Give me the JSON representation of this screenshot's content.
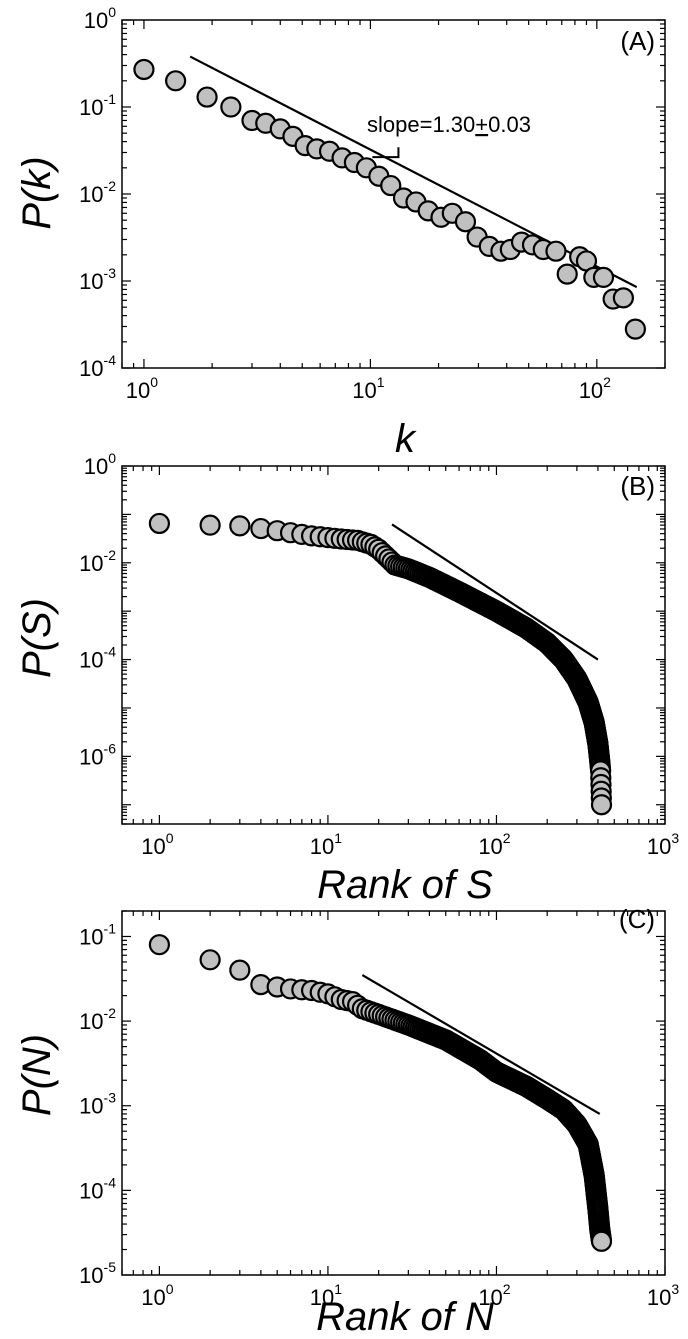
{
  "chart_data": [
    {
      "type": "scatter",
      "panel_tag": "(A)",
      "xlabel": "k",
      "ylabel": "P(k)",
      "xscale": "log",
      "yscale": "log",
      "xlim": [
        0.8,
        200
      ],
      "ylim": [
        0.0001,
        1
      ],
      "x_ticks": [
        {
          "base": "10",
          "exp": "0"
        },
        {
          "base": "10",
          "exp": "1"
        },
        {
          "base": "10",
          "exp": "2"
        }
      ],
      "y_ticks": [
        {
          "base": "10",
          "exp": "-4"
        },
        {
          "base": "10",
          "exp": "-3"
        },
        {
          "base": "10",
          "exp": "-2"
        },
        {
          "base": "10",
          "exp": "-1"
        },
        {
          "base": "10",
          "exp": "0"
        }
      ],
      "annotation": {
        "prefix": "slope=1.30",
        "pm": "+",
        "suffix": "0.03"
      },
      "marker_color": "#c0c0c0",
      "fit_line": {
        "x": [
          1.6,
          150
        ],
        "y": [
          0.38,
          0.00085
        ]
      },
      "slope_marker": {
        "corner": [
          10.2,
          0.0265
        ],
        "x_end": 13.3,
        "y_top": 0.0345
      },
      "x": [
        1.0,
        1.38,
        1.9,
        2.42,
        3.0,
        3.45,
        4.0,
        4.55,
        5.15,
        5.8,
        6.6,
        7.5,
        8.5,
        9.6,
        10.9,
        12.3,
        14.0,
        15.9,
        18.0,
        20.5,
        23.0,
        26.3,
        29.6,
        33.5,
        37.7,
        41.5,
        46.5,
        52.0,
        58.0,
        66.0,
        74.0,
        84.0,
        90.0,
        97.0,
        107.0,
        118.0,
        131.0,
        148.0
      ],
      "y": [
        0.27,
        0.2,
        0.13,
        0.1,
        0.07,
        0.065,
        0.056,
        0.046,
        0.036,
        0.033,
        0.031,
        0.026,
        0.023,
        0.02,
        0.016,
        0.0125,
        0.009,
        0.0081,
        0.0064,
        0.0054,
        0.006,
        0.0048,
        0.0032,
        0.0025,
        0.0022,
        0.0023,
        0.0028,
        0.0026,
        0.0023,
        0.0022,
        0.0012,
        0.0019,
        0.0017,
        0.0011,
        0.0011,
        0.00062,
        0.00064,
        0.00028
      ]
    },
    {
      "type": "scatter",
      "panel_tag": "(B)",
      "xlabel": "Rank of S",
      "ylabel": "P(S)",
      "xscale": "log",
      "yscale": "log",
      "xlim": [
        0.6,
        1000
      ],
      "ylim": [
        4e-08,
        1
      ],
      "x_ticks": [
        {
          "base": "10",
          "exp": "0"
        },
        {
          "base": "10",
          "exp": "1"
        },
        {
          "base": "10",
          "exp": "2"
        },
        {
          "base": "10",
          "exp": "3"
        }
      ],
      "y_ticks": [
        {
          "base": "10",
          "exp": "-6"
        },
        {
          "base": "10",
          "exp": "-4"
        },
        {
          "base": "10",
          "exp": "-2"
        },
        {
          "base": "10",
          "exp": "0"
        }
      ],
      "marker_color": "#c0c0c0",
      "fit_line": {
        "x": [
          24,
          400
        ],
        "y": [
          0.062,
          0.0001
        ]
      },
      "rank_curve": {
        "n": 420,
        "anchors": [
          [
            1,
            0.065
          ],
          [
            2,
            0.06
          ],
          [
            3,
            0.058
          ],
          [
            5,
            0.046
          ],
          [
            8,
            0.036
          ],
          [
            12,
            0.031
          ],
          [
            15,
            0.029
          ],
          [
            18,
            0.024
          ],
          [
            20,
            0.019
          ],
          [
            23,
            0.012
          ],
          [
            25,
            0.009
          ],
          [
            30,
            0.0075
          ],
          [
            40,
            0.005
          ],
          [
            60,
            0.0025
          ],
          [
            100,
            0.001
          ],
          [
            150,
            0.00045
          ],
          [
            200,
            0.00022
          ],
          [
            250,
            0.0001
          ],
          [
            300,
            4e-05
          ],
          [
            350,
            1.3e-05
          ],
          [
            380,
            5e-06
          ],
          [
            400,
            1.8e-06
          ],
          [
            410,
            8e-07
          ],
          [
            415,
            5e-07
          ],
          [
            420,
            1e-07
          ]
        ]
      }
    },
    {
      "type": "scatter",
      "panel_tag": "(C)",
      "xlabel": "Rank of N",
      "ylabel": "P(N)",
      "xscale": "log",
      "yscale": "log",
      "xlim": [
        0.6,
        1000
      ],
      "ylim": [
        1e-05,
        0.2
      ],
      "x_ticks": [
        {
          "base": "10",
          "exp": "0"
        },
        {
          "base": "10",
          "exp": "1"
        },
        {
          "base": "10",
          "exp": "2"
        },
        {
          "base": "10",
          "exp": "3"
        }
      ],
      "y_ticks": [
        {
          "base": "10",
          "exp": "-5"
        },
        {
          "base": "10",
          "exp": "-4"
        },
        {
          "base": "10",
          "exp": "-3"
        },
        {
          "base": "10",
          "exp": "-2"
        },
        {
          "base": "10",
          "exp": "-1"
        }
      ],
      "marker_color": "#c0c0c0",
      "fit_line": {
        "x": [
          16,
          410
        ],
        "y": [
          0.035,
          0.0008
        ]
      },
      "rank_curve": {
        "n": 420,
        "anchors": [
          [
            1,
            0.08
          ],
          [
            2,
            0.053
          ],
          [
            3,
            0.04
          ],
          [
            4,
            0.027
          ],
          [
            6,
            0.024
          ],
          [
            8,
            0.023
          ],
          [
            10,
            0.021
          ],
          [
            12,
            0.018
          ],
          [
            14,
            0.017
          ],
          [
            16,
            0.014
          ],
          [
            20,
            0.012
          ],
          [
            30,
            0.009
          ],
          [
            50,
            0.006
          ],
          [
            80,
            0.0035
          ],
          [
            100,
            0.0025
          ],
          [
            150,
            0.0017
          ],
          [
            200,
            0.0012
          ],
          [
            250,
            0.0009
          ],
          [
            300,
            0.0006
          ],
          [
            350,
            0.00035
          ],
          [
            380,
            0.00015
          ],
          [
            400,
            6e-05
          ],
          [
            410,
            3.5e-05
          ],
          [
            420,
            2.5e-05
          ]
        ]
      }
    }
  ]
}
